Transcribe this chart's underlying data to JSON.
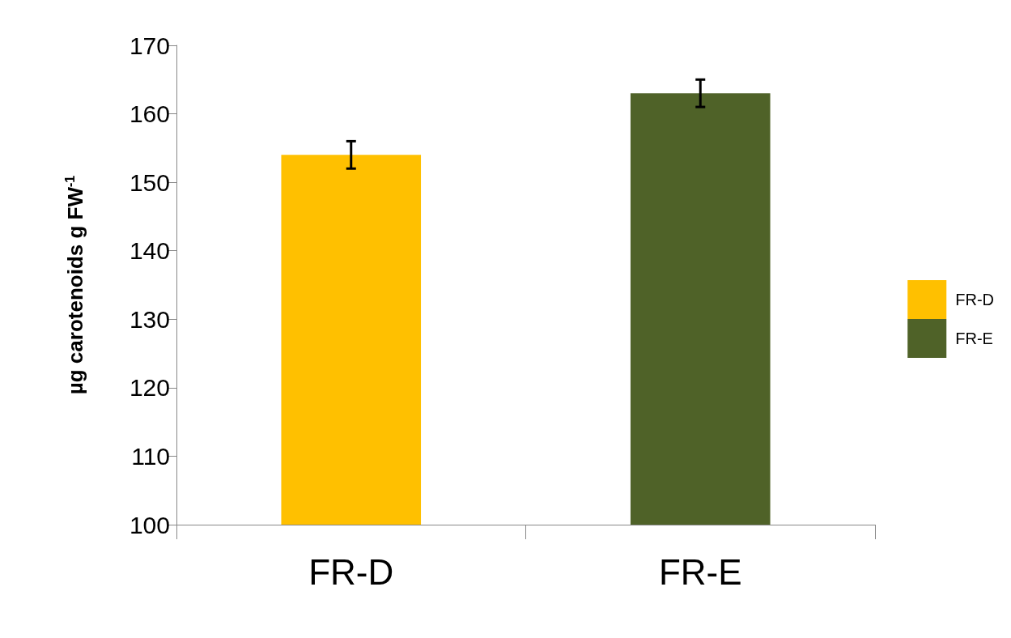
{
  "chart_data": {
    "type": "bar",
    "ylabel": "µg carotenoids g FW$^{-1}$",
    "categories": [
      "FR-D",
      "FR-E"
    ],
    "series": [
      {
        "name": "FR-D",
        "color": "#ffc000",
        "values": [
          154,
          null
        ],
        "errors": [
          2,
          null
        ]
      },
      {
        "name": "FR-E",
        "color": "#4f6228",
        "values": [
          null,
          163
        ],
        "errors": [
          null,
          2
        ]
      }
    ],
    "ylim": [
      100,
      170
    ],
    "yticks": [
      100,
      110,
      120,
      130,
      140,
      150,
      160,
      170
    ],
    "grid": false,
    "legend": "right"
  }
}
